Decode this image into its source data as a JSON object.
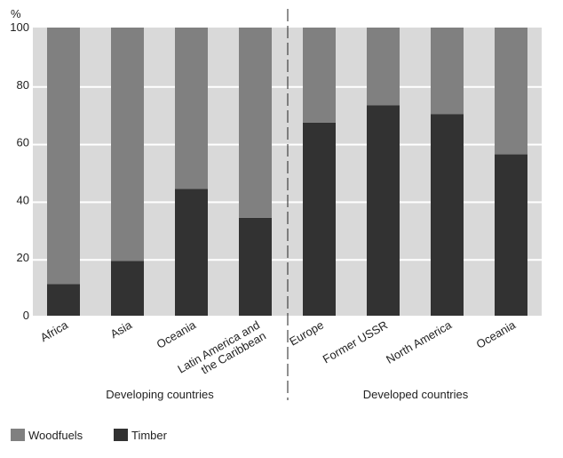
{
  "chart_data": {
    "type": "bar",
    "stacked": true,
    "percent": true,
    "ylabel": "%",
    "ylim": [
      0,
      100
    ],
    "yticks": [
      0,
      20,
      40,
      60,
      80,
      100
    ],
    "grid": true,
    "categories": [
      "Africa",
      "Asia",
      "Oceania",
      "Latin America and the Caribbean",
      "Europe",
      "Former USSR",
      "North America",
      "Oceania"
    ],
    "category_lines": [
      [
        "Africa"
      ],
      [
        "Asia"
      ],
      [
        "Oceania"
      ],
      [
        "Latin America and",
        "the Caribbean"
      ],
      [
        "Europe"
      ],
      [
        "Former USSR"
      ],
      [
        "North America"
      ],
      [
        "Oceania"
      ]
    ],
    "groups": [
      {
        "label": "Developing countries",
        "categories": [
          0,
          1,
          2,
          3
        ]
      },
      {
        "label": "Developed countries",
        "categories": [
          4,
          5,
          6,
          7
        ]
      }
    ],
    "series": [
      {
        "name": "Timber",
        "color": "#323232",
        "values": [
          11,
          19,
          44,
          34,
          67,
          73,
          70,
          56
        ]
      },
      {
        "name": "Woodfuels",
        "color": "#808080",
        "values": [
          89,
          81,
          56,
          66,
          33,
          27,
          30,
          44
        ]
      }
    ],
    "legend": {
      "position": "bottom-left",
      "items": [
        "Woodfuels",
        "Timber"
      ]
    },
    "background_color": "#d9d9d9"
  }
}
